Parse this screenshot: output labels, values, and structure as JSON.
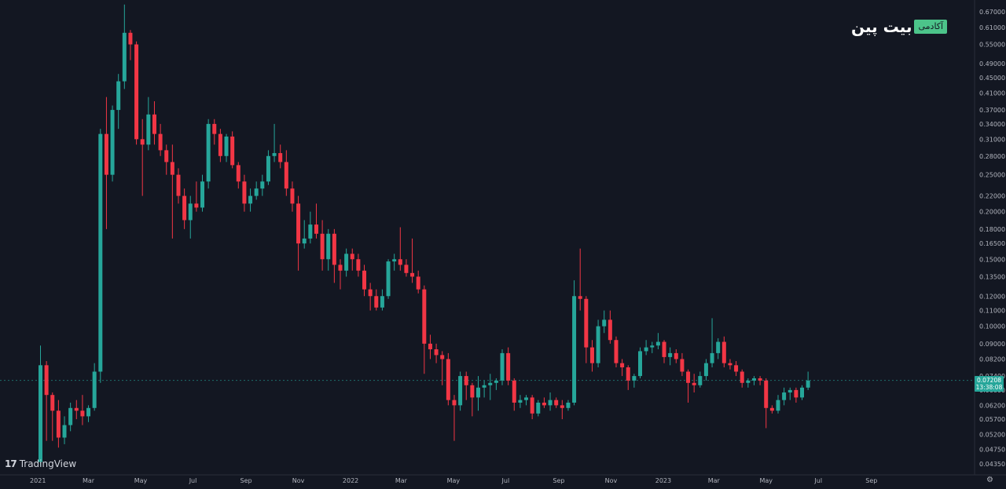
{
  "branding": {
    "brand_name": "بیت پین",
    "brand_tag": "آکادمی",
    "platform": "TradingView",
    "platform_icon": "17"
  },
  "price_label": {
    "price": "0.07208",
    "countdown": "13:38:08"
  },
  "colors": {
    "background": "#131722",
    "up": "#26a69a",
    "down": "#f23645",
    "axis_text": "#b2b5be",
    "current_price_line": "#26a69a"
  },
  "chart_data": {
    "type": "candlestick",
    "title": "",
    "y_scale": "log",
    "ylim": [
      0.041,
      0.7
    ],
    "grid": false,
    "y_ticks": [
      "0.67000",
      "0.61000",
      "0.55000",
      "0.49000",
      "0.45000",
      "0.41000",
      "0.37000",
      "0.34000",
      "0.31000",
      "0.28000",
      "0.25000",
      "0.22000",
      "0.20000",
      "0.18000",
      "0.16500",
      "0.15000",
      "0.13500",
      "0.12000",
      "0.11000",
      "0.10000",
      "0.09000",
      "0.08200",
      "0.07400",
      "0.06800",
      "0.06200",
      "0.05700",
      "0.05200",
      "0.04750",
      "0.04350"
    ],
    "x_ticks": [
      "2021",
      "Mar",
      "May",
      "Jul",
      "Sep",
      "Nov",
      "2022",
      "Mar",
      "May",
      "Jul",
      "Sep",
      "Nov",
      "2023",
      "Mar",
      "May",
      "Jul",
      "Sep"
    ],
    "x_start": "2021-01-04",
    "x_step": "1 week",
    "current_price": 0.07208,
    "candles": [
      {
        "o": 0.044,
        "h": 0.089,
        "l": 0.043,
        "c": 0.079
      },
      {
        "o": 0.079,
        "h": 0.081,
        "l": 0.05,
        "c": 0.066
      },
      {
        "o": 0.066,
        "h": 0.067,
        "l": 0.05,
        "c": 0.06
      },
      {
        "o": 0.06,
        "h": 0.064,
        "l": 0.048,
        "c": 0.051
      },
      {
        "o": 0.051,
        "h": 0.058,
        "l": 0.049,
        "c": 0.055
      },
      {
        "o": 0.055,
        "h": 0.063,
        "l": 0.053,
        "c": 0.061
      },
      {
        "o": 0.061,
        "h": 0.064,
        "l": 0.057,
        "c": 0.06
      },
      {
        "o": 0.06,
        "h": 0.066,
        "l": 0.055,
        "c": 0.058
      },
      {
        "o": 0.058,
        "h": 0.062,
        "l": 0.056,
        "c": 0.061
      },
      {
        "o": 0.061,
        "h": 0.08,
        "l": 0.06,
        "c": 0.076
      },
      {
        "o": 0.076,
        "h": 0.33,
        "l": 0.071,
        "c": 0.32
      },
      {
        "o": 0.32,
        "h": 0.4,
        "l": 0.18,
        "c": 0.25
      },
      {
        "o": 0.25,
        "h": 0.38,
        "l": 0.24,
        "c": 0.37
      },
      {
        "o": 0.37,
        "h": 0.46,
        "l": 0.33,
        "c": 0.44
      },
      {
        "o": 0.44,
        "h": 0.7,
        "l": 0.42,
        "c": 0.59
      },
      {
        "o": 0.59,
        "h": 0.6,
        "l": 0.5,
        "c": 0.55
      },
      {
        "o": 0.55,
        "h": 0.56,
        "l": 0.3,
        "c": 0.31
      },
      {
        "o": 0.31,
        "h": 0.35,
        "l": 0.22,
        "c": 0.3
      },
      {
        "o": 0.3,
        "h": 0.4,
        "l": 0.29,
        "c": 0.36
      },
      {
        "o": 0.36,
        "h": 0.39,
        "l": 0.3,
        "c": 0.32
      },
      {
        "o": 0.32,
        "h": 0.34,
        "l": 0.28,
        "c": 0.29
      },
      {
        "o": 0.29,
        "h": 0.3,
        "l": 0.25,
        "c": 0.27
      },
      {
        "o": 0.27,
        "h": 0.3,
        "l": 0.17,
        "c": 0.25
      },
      {
        "o": 0.25,
        "h": 0.26,
        "l": 0.21,
        "c": 0.22
      },
      {
        "o": 0.22,
        "h": 0.23,
        "l": 0.18,
        "c": 0.19
      },
      {
        "o": 0.19,
        "h": 0.22,
        "l": 0.17,
        "c": 0.21
      },
      {
        "o": 0.21,
        "h": 0.24,
        "l": 0.2,
        "c": 0.205
      },
      {
        "o": 0.205,
        "h": 0.25,
        "l": 0.2,
        "c": 0.24
      },
      {
        "o": 0.24,
        "h": 0.35,
        "l": 0.23,
        "c": 0.34
      },
      {
        "o": 0.34,
        "h": 0.35,
        "l": 0.3,
        "c": 0.32
      },
      {
        "o": 0.32,
        "h": 0.33,
        "l": 0.27,
        "c": 0.28
      },
      {
        "o": 0.28,
        "h": 0.32,
        "l": 0.27,
        "c": 0.315
      },
      {
        "o": 0.315,
        "h": 0.325,
        "l": 0.26,
        "c": 0.265
      },
      {
        "o": 0.265,
        "h": 0.27,
        "l": 0.23,
        "c": 0.24
      },
      {
        "o": 0.24,
        "h": 0.25,
        "l": 0.2,
        "c": 0.21
      },
      {
        "o": 0.21,
        "h": 0.23,
        "l": 0.2,
        "c": 0.22
      },
      {
        "o": 0.22,
        "h": 0.24,
        "l": 0.215,
        "c": 0.23
      },
      {
        "o": 0.23,
        "h": 0.25,
        "l": 0.22,
        "c": 0.24
      },
      {
        "o": 0.24,
        "h": 0.29,
        "l": 0.235,
        "c": 0.28
      },
      {
        "o": 0.28,
        "h": 0.34,
        "l": 0.27,
        "c": 0.285
      },
      {
        "o": 0.285,
        "h": 0.3,
        "l": 0.26,
        "c": 0.27
      },
      {
        "o": 0.27,
        "h": 0.29,
        "l": 0.22,
        "c": 0.23
      },
      {
        "o": 0.23,
        "h": 0.24,
        "l": 0.2,
        "c": 0.21
      },
      {
        "o": 0.21,
        "h": 0.22,
        "l": 0.14,
        "c": 0.165
      },
      {
        "o": 0.165,
        "h": 0.19,
        "l": 0.16,
        "c": 0.17
      },
      {
        "o": 0.17,
        "h": 0.2,
        "l": 0.165,
        "c": 0.185
      },
      {
        "o": 0.185,
        "h": 0.21,
        "l": 0.17,
        "c": 0.175
      },
      {
        "o": 0.175,
        "h": 0.19,
        "l": 0.14,
        "c": 0.15
      },
      {
        "o": 0.15,
        "h": 0.18,
        "l": 0.14,
        "c": 0.175
      },
      {
        "o": 0.175,
        "h": 0.18,
        "l": 0.13,
        "c": 0.145
      },
      {
        "o": 0.145,
        "h": 0.15,
        "l": 0.125,
        "c": 0.14
      },
      {
        "o": 0.14,
        "h": 0.16,
        "l": 0.135,
        "c": 0.155
      },
      {
        "o": 0.155,
        "h": 0.16,
        "l": 0.14,
        "c": 0.15
      },
      {
        "o": 0.15,
        "h": 0.155,
        "l": 0.135,
        "c": 0.14
      },
      {
        "o": 0.14,
        "h": 0.145,
        "l": 0.12,
        "c": 0.125
      },
      {
        "o": 0.125,
        "h": 0.13,
        "l": 0.11,
        "c": 0.12
      },
      {
        "o": 0.12,
        "h": 0.125,
        "l": 0.11,
        "c": 0.112
      },
      {
        "o": 0.112,
        "h": 0.125,
        "l": 0.11,
        "c": 0.12
      },
      {
        "o": 0.12,
        "h": 0.15,
        "l": 0.118,
        "c": 0.148
      },
      {
        "o": 0.148,
        "h": 0.155,
        "l": 0.14,
        "c": 0.15
      },
      {
        "o": 0.15,
        "h": 0.182,
        "l": 0.14,
        "c": 0.145
      },
      {
        "o": 0.145,
        "h": 0.15,
        "l": 0.135,
        "c": 0.138
      },
      {
        "o": 0.138,
        "h": 0.17,
        "l": 0.13,
        "c": 0.135
      },
      {
        "o": 0.135,
        "h": 0.14,
        "l": 0.122,
        "c": 0.125
      },
      {
        "o": 0.125,
        "h": 0.128,
        "l": 0.075,
        "c": 0.09
      },
      {
        "o": 0.09,
        "h": 0.095,
        "l": 0.082,
        "c": 0.087
      },
      {
        "o": 0.087,
        "h": 0.09,
        "l": 0.08,
        "c": 0.084
      },
      {
        "o": 0.084,
        "h": 0.086,
        "l": 0.07,
        "c": 0.082
      },
      {
        "o": 0.082,
        "h": 0.085,
        "l": 0.062,
        "c": 0.064
      },
      {
        "o": 0.064,
        "h": 0.066,
        "l": 0.05,
        "c": 0.062
      },
      {
        "o": 0.062,
        "h": 0.076,
        "l": 0.06,
        "c": 0.074
      },
      {
        "o": 0.074,
        "h": 0.076,
        "l": 0.064,
        "c": 0.07
      },
      {
        "o": 0.07,
        "h": 0.071,
        "l": 0.058,
        "c": 0.065
      },
      {
        "o": 0.065,
        "h": 0.074,
        "l": 0.06,
        "c": 0.069
      },
      {
        "o": 0.069,
        "h": 0.072,
        "l": 0.065,
        "c": 0.07
      },
      {
        "o": 0.07,
        "h": 0.075,
        "l": 0.064,
        "c": 0.071
      },
      {
        "o": 0.071,
        "h": 0.073,
        "l": 0.068,
        "c": 0.072
      },
      {
        "o": 0.072,
        "h": 0.087,
        "l": 0.07,
        "c": 0.085
      },
      {
        "o": 0.085,
        "h": 0.088,
        "l": 0.07,
        "c": 0.072
      },
      {
        "o": 0.072,
        "h": 0.073,
        "l": 0.06,
        "c": 0.063
      },
      {
        "o": 0.063,
        "h": 0.066,
        "l": 0.061,
        "c": 0.064
      },
      {
        "o": 0.064,
        "h": 0.066,
        "l": 0.062,
        "c": 0.065
      },
      {
        "o": 0.065,
        "h": 0.066,
        "l": 0.057,
        "c": 0.059
      },
      {
        "o": 0.059,
        "h": 0.064,
        "l": 0.058,
        "c": 0.063
      },
      {
        "o": 0.063,
        "h": 0.065,
        "l": 0.061,
        "c": 0.062
      },
      {
        "o": 0.062,
        "h": 0.067,
        "l": 0.06,
        "c": 0.064
      },
      {
        "o": 0.064,
        "h": 0.065,
        "l": 0.061,
        "c": 0.062
      },
      {
        "o": 0.062,
        "h": 0.064,
        "l": 0.057,
        "c": 0.061
      },
      {
        "o": 0.061,
        "h": 0.064,
        "l": 0.06,
        "c": 0.063
      },
      {
        "o": 0.063,
        "h": 0.132,
        "l": 0.062,
        "c": 0.12
      },
      {
        "o": 0.12,
        "h": 0.16,
        "l": 0.11,
        "c": 0.118
      },
      {
        "o": 0.118,
        "h": 0.12,
        "l": 0.08,
        "c": 0.088
      },
      {
        "o": 0.088,
        "h": 0.092,
        "l": 0.076,
        "c": 0.08
      },
      {
        "o": 0.08,
        "h": 0.104,
        "l": 0.078,
        "c": 0.1
      },
      {
        "o": 0.1,
        "h": 0.11,
        "l": 0.096,
        "c": 0.104
      },
      {
        "o": 0.104,
        "h": 0.11,
        "l": 0.09,
        "c": 0.092
      },
      {
        "o": 0.092,
        "h": 0.094,
        "l": 0.078,
        "c": 0.08
      },
      {
        "o": 0.08,
        "h": 0.082,
        "l": 0.074,
        "c": 0.078
      },
      {
        "o": 0.078,
        "h": 0.079,
        "l": 0.068,
        "c": 0.072
      },
      {
        "o": 0.072,
        "h": 0.075,
        "l": 0.069,
        "c": 0.074
      },
      {
        "o": 0.074,
        "h": 0.088,
        "l": 0.073,
        "c": 0.086
      },
      {
        "o": 0.086,
        "h": 0.092,
        "l": 0.084,
        "c": 0.088
      },
      {
        "o": 0.088,
        "h": 0.091,
        "l": 0.085,
        "c": 0.089
      },
      {
        "o": 0.089,
        "h": 0.096,
        "l": 0.087,
        "c": 0.091
      },
      {
        "o": 0.091,
        "h": 0.092,
        "l": 0.08,
        "c": 0.083
      },
      {
        "o": 0.083,
        "h": 0.088,
        "l": 0.079,
        "c": 0.085
      },
      {
        "o": 0.085,
        "h": 0.087,
        "l": 0.08,
        "c": 0.082
      },
      {
        "o": 0.082,
        "h": 0.085,
        "l": 0.074,
        "c": 0.076
      },
      {
        "o": 0.076,
        "h": 0.077,
        "l": 0.063,
        "c": 0.071
      },
      {
        "o": 0.071,
        "h": 0.075,
        "l": 0.067,
        "c": 0.07
      },
      {
        "o": 0.07,
        "h": 0.076,
        "l": 0.069,
        "c": 0.074
      },
      {
        "o": 0.074,
        "h": 0.082,
        "l": 0.072,
        "c": 0.08
      },
      {
        "o": 0.08,
        "h": 0.105,
        "l": 0.078,
        "c": 0.085
      },
      {
        "o": 0.085,
        "h": 0.093,
        "l": 0.082,
        "c": 0.091
      },
      {
        "o": 0.091,
        "h": 0.094,
        "l": 0.078,
        "c": 0.08
      },
      {
        "o": 0.08,
        "h": 0.082,
        "l": 0.077,
        "c": 0.079
      },
      {
        "o": 0.079,
        "h": 0.081,
        "l": 0.074,
        "c": 0.076
      },
      {
        "o": 0.076,
        "h": 0.077,
        "l": 0.069,
        "c": 0.071
      },
      {
        "o": 0.071,
        "h": 0.073,
        "l": 0.069,
        "c": 0.072
      },
      {
        "o": 0.072,
        "h": 0.074,
        "l": 0.07,
        "c": 0.073
      },
      {
        "o": 0.073,
        "h": 0.074,
        "l": 0.07,
        "c": 0.072
      },
      {
        "o": 0.072,
        "h": 0.073,
        "l": 0.054,
        "c": 0.061
      },
      {
        "o": 0.061,
        "h": 0.062,
        "l": 0.059,
        "c": 0.06
      },
      {
        "o": 0.06,
        "h": 0.066,
        "l": 0.059,
        "c": 0.064
      },
      {
        "o": 0.064,
        "h": 0.069,
        "l": 0.062,
        "c": 0.067
      },
      {
        "o": 0.067,
        "h": 0.069,
        "l": 0.064,
        "c": 0.068
      },
      {
        "o": 0.068,
        "h": 0.069,
        "l": 0.063,
        "c": 0.065
      },
      {
        "o": 0.065,
        "h": 0.07,
        "l": 0.064,
        "c": 0.069
      },
      {
        "o": 0.069,
        "h": 0.076,
        "l": 0.068,
        "c": 0.072
      }
    ]
  }
}
